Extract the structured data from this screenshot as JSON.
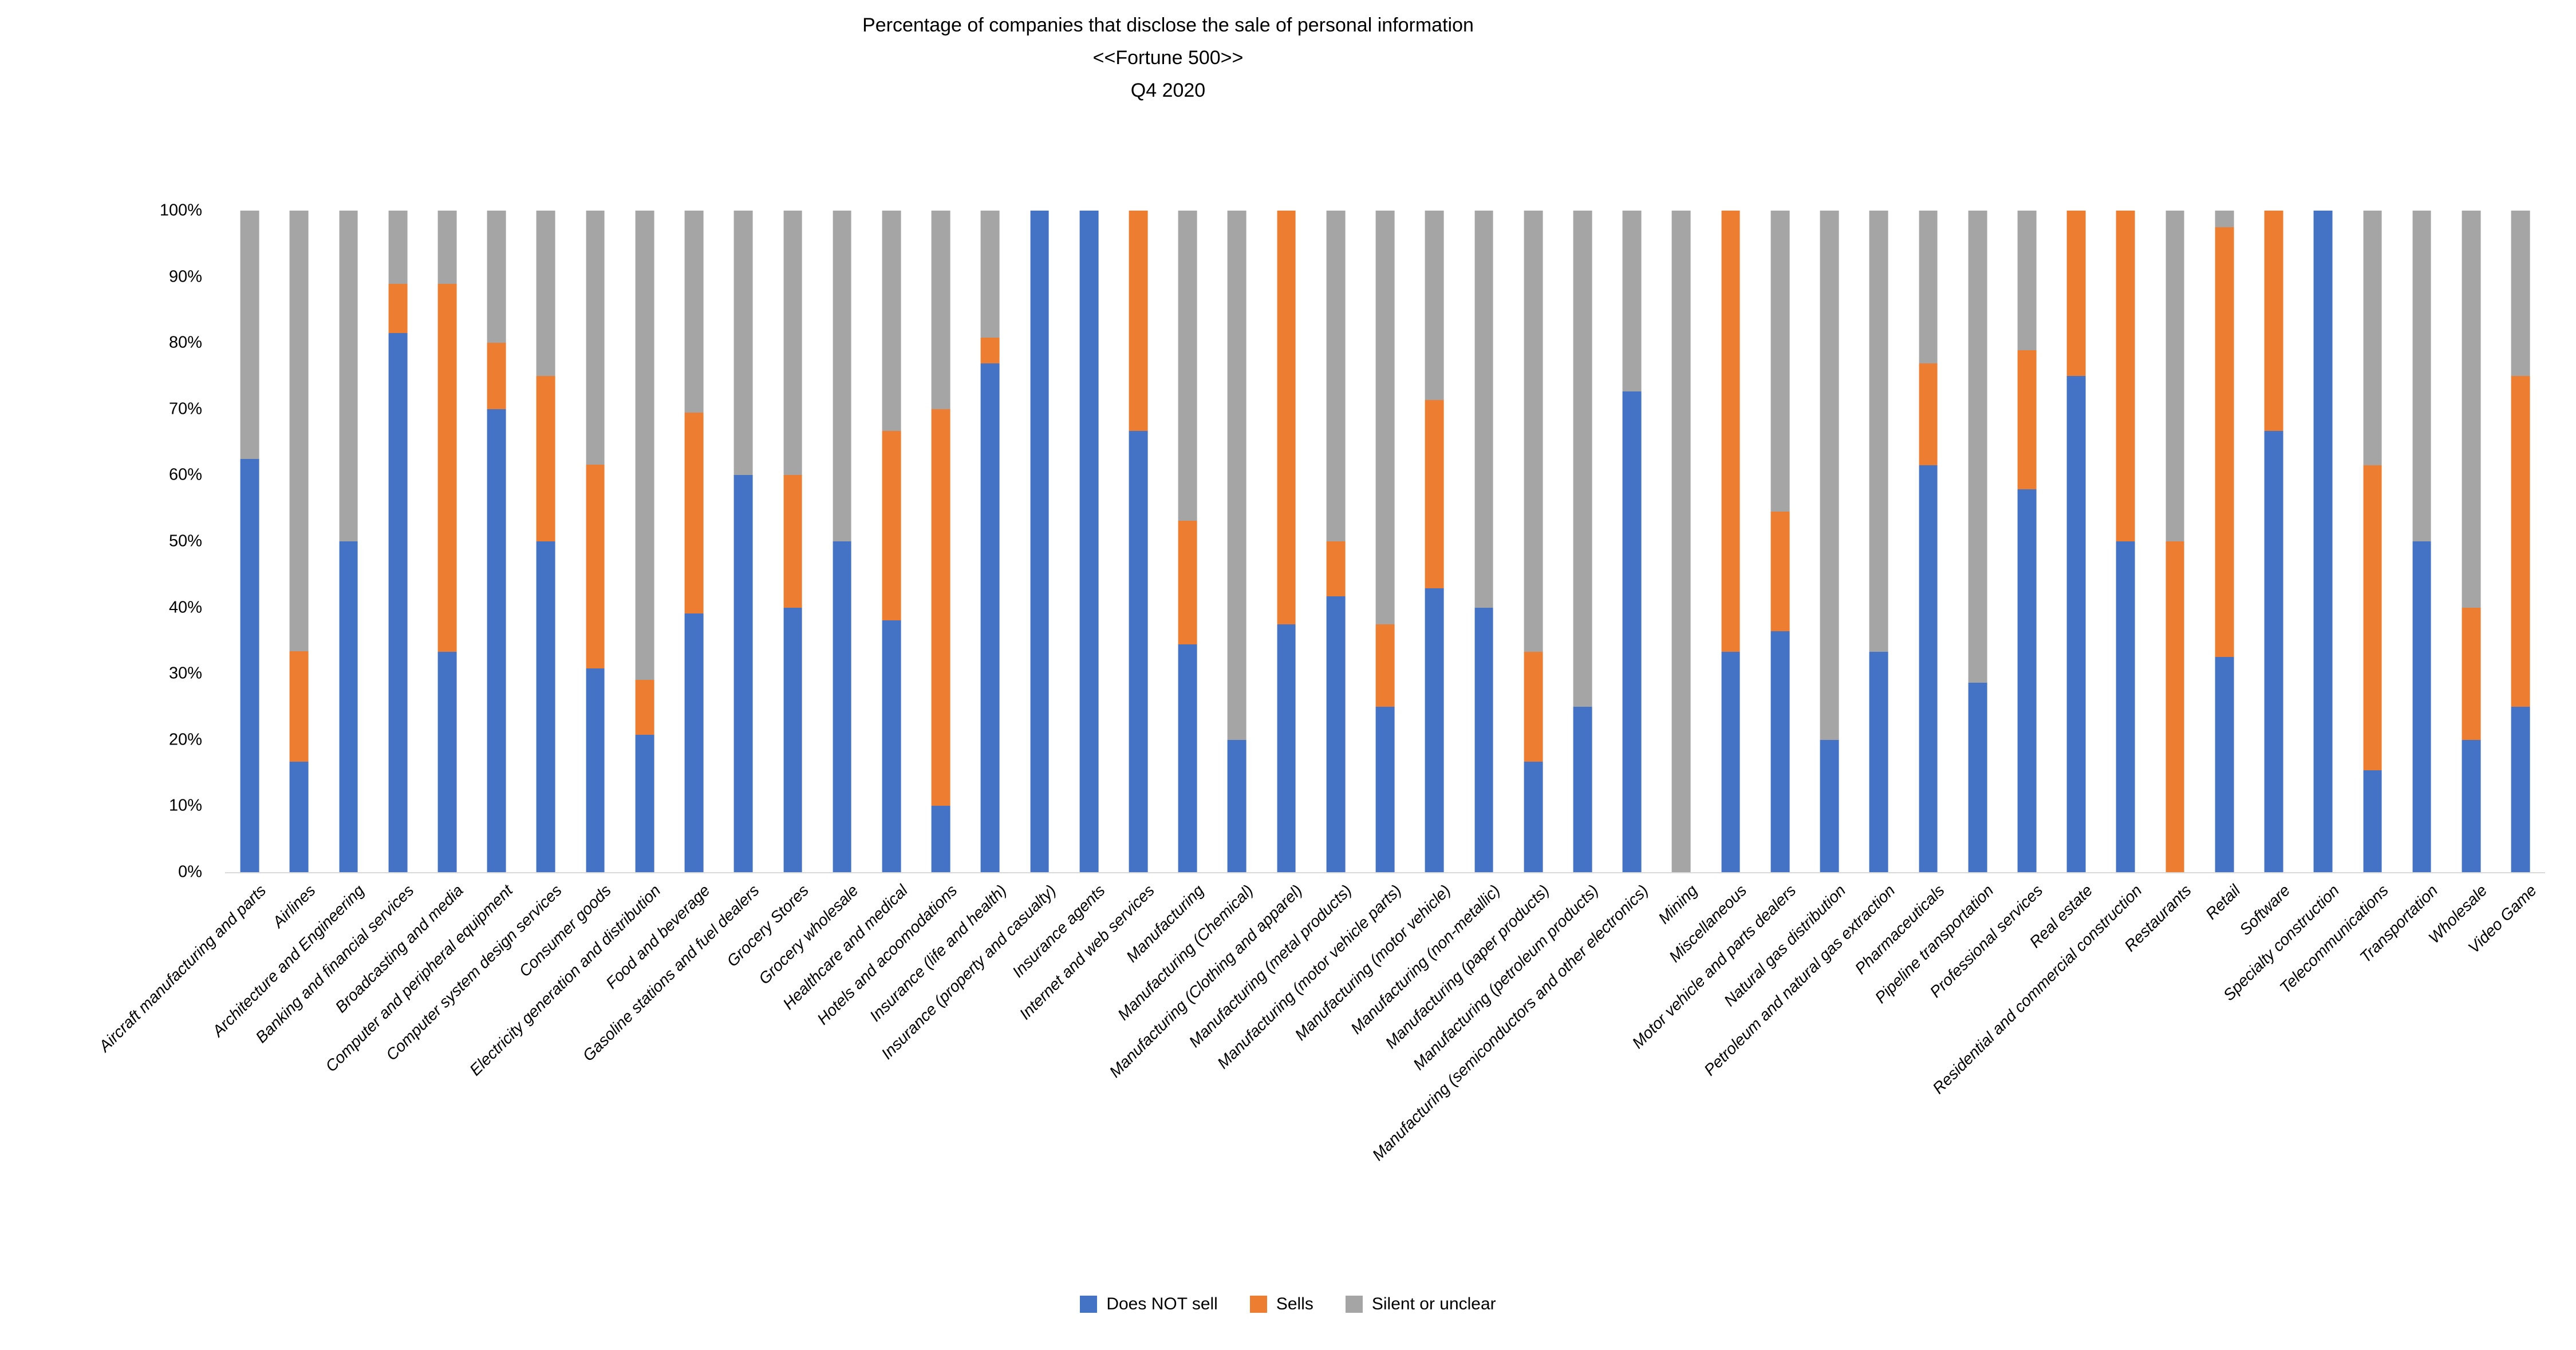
{
  "title": {
    "line1": "Percentage of companies that disclose the sale of personal information",
    "line2": "<<Fortune 500>>",
    "line3": "Q4 2020"
  },
  "colors": {
    "does_not_sell": "#4472C4",
    "sells": "#ED7D31",
    "silent_or_unclear": "#A5A5A5",
    "axis_line": "#D9D9D9",
    "text": "#000000"
  },
  "legend": {
    "items": [
      {
        "label": "Does NOT sell",
        "color_key": "does_not_sell"
      },
      {
        "label": "Sells",
        "color_key": "sells"
      },
      {
        "label": "Silent or unclear",
        "color_key": "silent_or_unclear"
      }
    ]
  },
  "y_axis": {
    "ticks": [
      "0%",
      "10%",
      "20%",
      "30%",
      "40%",
      "50%",
      "60%",
      "70%",
      "80%",
      "90%",
      "100%"
    ],
    "min": 0,
    "max": 100
  },
  "chart_data": {
    "type": "bar",
    "stacked": true,
    "unit": "percent",
    "grid": false,
    "legend_position": "bottom",
    "ylim": [
      0,
      100
    ],
    "title": "Percentage of companies that disclose the sale of personal information <<Fortune 500>> Q4 2020",
    "xlabel": "",
    "ylabel": "",
    "categories": [
      "Aircraft manufacturing and parts",
      "Airlines",
      "Architecture and Engineering",
      "Banking and financial services",
      "Broadcasting and media",
      "Computer and peripheral equipment",
      "Computer system design services",
      "Consumer goods",
      "Electricity generation and distribution",
      "Food and beverage",
      "Gasoline stations and fuel dealers",
      "Grocery Stores",
      "Grocery wholesale",
      "Healthcare and medical",
      "Hotels and acoomodations",
      "Insurance (life and health)",
      "Insurance (property and casualty)",
      "Insurance agents",
      "Internet and web services",
      "Manufacturing",
      "Manufacturing (Chemical)",
      "Manufacturing (Clothing and apparel)",
      "Manufacturing (metal products)",
      "Manufacturing (motor vehicle parts)",
      "Manufacturing (motor vehicle)",
      "Manufacturing (non-metallic)",
      "Manufacturing (paper products)",
      "Manufacturing (petroleum products)",
      "Manufacturing (semiconductors and other electronics)",
      "Mining",
      "Miscellaneous",
      "Motor vehicle and parts dealers",
      "Natural gas distribution",
      "Petroleum and natural gas extraction",
      "Pharmaceuticals",
      "Pipeline transportation",
      "Professional services",
      "Real estate",
      "Residential and commercial construction",
      "Restaurants",
      "Retail",
      "Software",
      "Specialty construction",
      "Telecommunications",
      "Transportation",
      "Wholesale",
      "Video Game"
    ],
    "series": [
      {
        "name": "Does NOT sell",
        "color": "#4472C4",
        "values": [
          62.5,
          16.7,
          50,
          81.5,
          33.3,
          70,
          50,
          30.8,
          20.8,
          39.1,
          60,
          40,
          50,
          38.1,
          10,
          76.9,
          100,
          100,
          66.7,
          34.4,
          20,
          37.5,
          41.7,
          25,
          42.9,
          40,
          16.7,
          25,
          72.7,
          0,
          33.3,
          36.4,
          20,
          33.3,
          61.5,
          28.6,
          57.9,
          75,
          50,
          0,
          32.5,
          66.7,
          100,
          15.4,
          50,
          20,
          25
        ]
      },
      {
        "name": "Sells",
        "color": "#ED7D31",
        "values": [
          0,
          16.7,
          0,
          7.4,
          55.6,
          10,
          25,
          30.8,
          8.3,
          30.4,
          0,
          20,
          0,
          28.6,
          60,
          3.9,
          0,
          0,
          33.3,
          18.7,
          0,
          62.5,
          8.3,
          12.5,
          28.5,
          0,
          16.6,
          0,
          0,
          0,
          66.7,
          18.1,
          0,
          0,
          15.4,
          0,
          21.0,
          25,
          50,
          50,
          65,
          33.3,
          0,
          46.1,
          0,
          20,
          50
        ]
      },
      {
        "name": "Silent or unclear",
        "color": "#A5A5A5",
        "values": [
          37.5,
          66.6,
          50,
          11.1,
          11.1,
          20,
          25,
          38.4,
          70.9,
          30.5,
          40,
          40,
          50,
          33.3,
          30,
          19.2,
          0,
          0,
          0,
          46.9,
          80,
          0,
          50,
          62.5,
          28.6,
          60,
          66.7,
          75,
          27.3,
          100,
          0,
          45.5,
          80,
          66.7,
          23.1,
          71.4,
          21.1,
          0,
          0,
          50,
          2.5,
          0,
          0,
          38.5,
          50,
          60,
          25
        ]
      }
    ]
  }
}
